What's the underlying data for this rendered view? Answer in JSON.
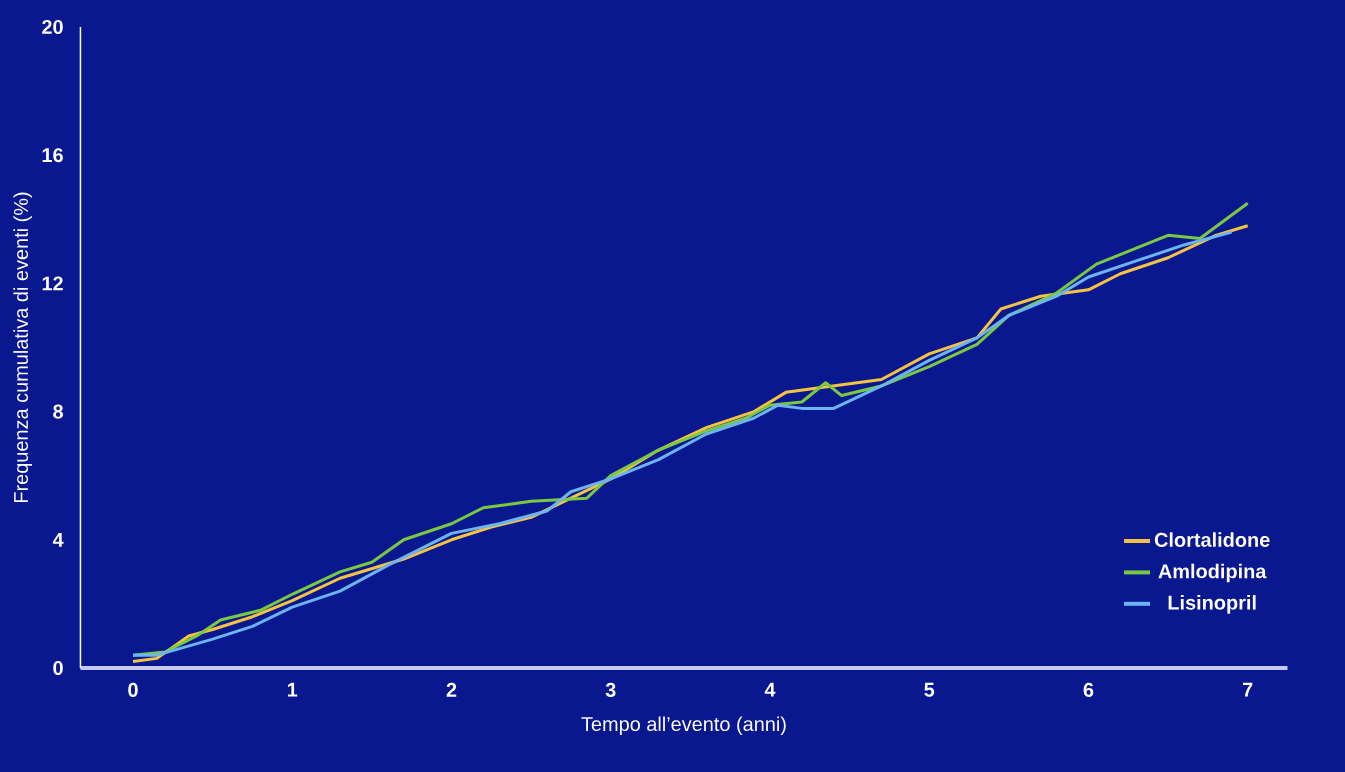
{
  "chart_data": {
    "type": "line",
    "xlabel": "Tempo all’evento (anni)",
    "ylabel": "Frequenza cumulativa di eventi (%)",
    "xlim": [
      -0.33,
      7.25
    ],
    "ylim": [
      0,
      20
    ],
    "xticks": [
      0,
      1,
      2,
      3,
      4,
      5,
      6,
      7
    ],
    "yticks": [
      0,
      4,
      8,
      12,
      16,
      20
    ],
    "grid": false,
    "legend": "bottom right",
    "marker": "none",
    "line_style": "solid",
    "series": [
      {
        "name": "Clortalidone",
        "color": "#f5c242",
        "x": [
          0,
          0.15,
          0.35,
          0.5,
          0.75,
          1,
          1.3,
          1.7,
          2,
          2.25,
          2.5,
          2.75,
          3,
          3.3,
          3.6,
          3.9,
          4.1,
          4.4,
          4.7,
          5,
          5.3,
          5.45,
          5.7,
          6,
          6.2,
          6.5,
          6.8,
          7
        ],
        "values": [
          0.2,
          0.3,
          1.0,
          1.2,
          1.6,
          2.1,
          2.8,
          3.4,
          4.0,
          4.4,
          4.7,
          5.3,
          5.9,
          6.8,
          7.5,
          8.0,
          8.6,
          8.8,
          9.0,
          9.8,
          10.3,
          11.2,
          11.6,
          11.8,
          12.3,
          12.8,
          13.5,
          13.8
        ]
      },
      {
        "name": "Amlodipina",
        "color": "#7ac943",
        "x": [
          0,
          0.2,
          0.4,
          0.55,
          0.8,
          1,
          1.3,
          1.5,
          1.7,
          2,
          2.2,
          2.5,
          2.85,
          3,
          3.3,
          3.6,
          3.85,
          4,
          4.2,
          4.35,
          4.45,
          4.7,
          5,
          5.3,
          5.5,
          5.8,
          6.05,
          6.3,
          6.5,
          6.7,
          7
        ],
        "values": [
          0.4,
          0.5,
          1.0,
          1.5,
          1.8,
          2.3,
          3.0,
          3.3,
          4.0,
          4.5,
          5.0,
          5.2,
          5.3,
          6.0,
          6.8,
          7.4,
          7.8,
          8.2,
          8.3,
          8.9,
          8.5,
          8.8,
          9.4,
          10.1,
          11.0,
          11.7,
          12.6,
          13.1,
          13.5,
          13.4,
          14.5
        ]
      },
      {
        "name": "Lisinopril",
        "color": "#6cb4f0",
        "x": [
          0,
          0.15,
          0.5,
          0.75,
          1,
          1.3,
          1.6,
          2,
          2.3,
          2.6,
          2.75,
          3,
          3.3,
          3.6,
          3.9,
          4.05,
          4.2,
          4.4,
          4.7,
          5,
          5.3,
          5.5,
          5.8,
          6,
          6.3,
          6.6,
          6.9
        ],
        "values": [
          0.4,
          0.4,
          0.9,
          1.3,
          1.9,
          2.4,
          3.2,
          4.2,
          4.5,
          4.9,
          5.5,
          5.9,
          6.5,
          7.3,
          7.8,
          8.2,
          8.1,
          8.1,
          8.8,
          9.6,
          10.3,
          11.0,
          11.6,
          12.2,
          12.7,
          13.2,
          13.6
        ]
      }
    ]
  }
}
